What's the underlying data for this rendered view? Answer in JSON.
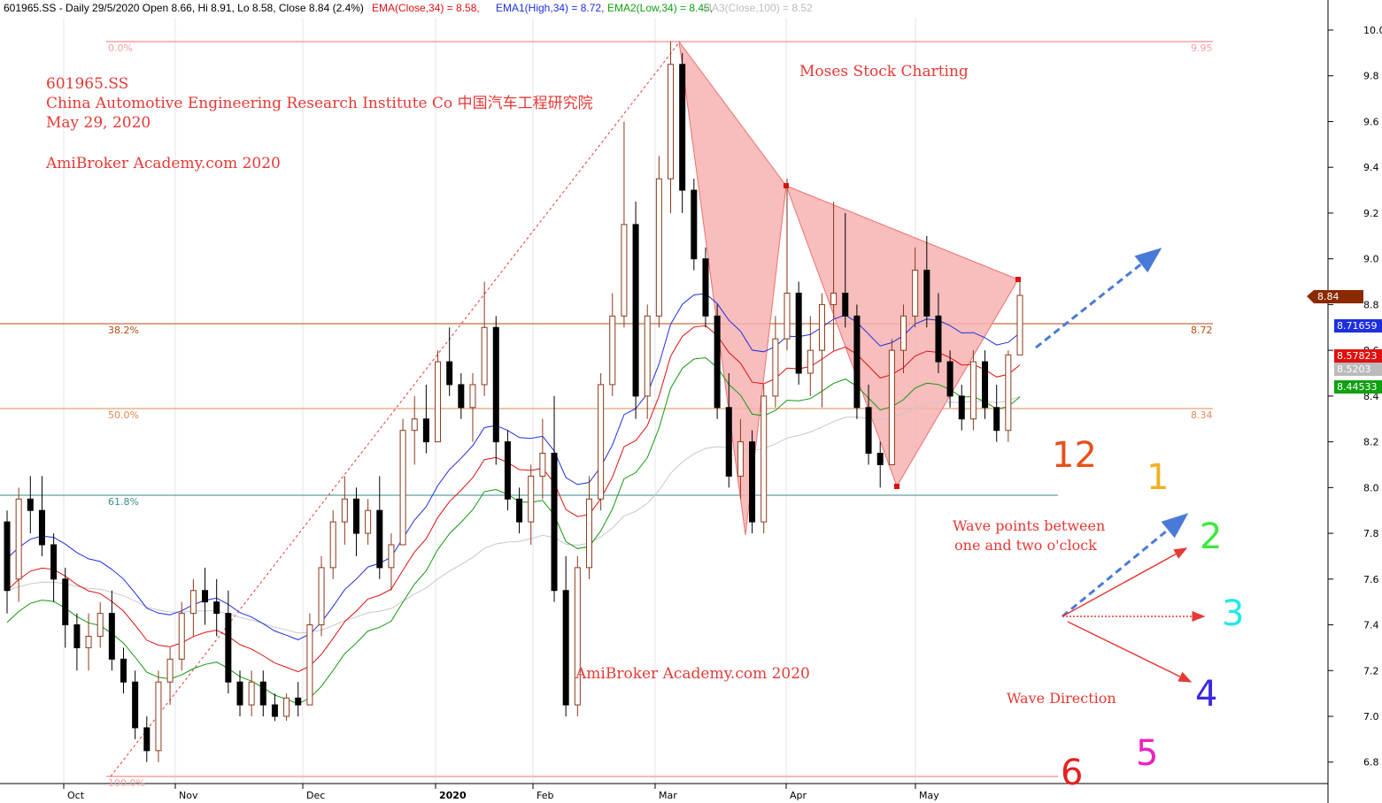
{
  "header": {
    "symbol_line": "601965.SS - Daily 29/5/2020 Open 8.66, Hi 8.91, Lo 8.58, Close 8.84 (2.4%)",
    "ema": "EMA(Close,34) = 8.58,",
    "ema1": "EMA1(High,34) = 8.72,",
    "ema2": "EMA2(Low,34) = 8.45,",
    "ma3": "MA3(Close,100) = 8.52"
  },
  "annotations": {
    "code": "601965.SS",
    "company": "China Automotive Engineering Research Institute Co 中国汽车工程研究院",
    "date": "May 29, 2020",
    "site1": "AmiBroker Academy.com  2020",
    "moses": "Moses Stock Charting",
    "site2": "AmiBroker Academy.com  2020",
    "wave_points_1": "Wave points between",
    "wave_points_2": "one and two o'clock",
    "wave_direction": "Wave Direction"
  },
  "clock": [
    {
      "text": "12",
      "color": "#e8501a"
    },
    {
      "text": "1",
      "color": "#f0b020"
    },
    {
      "text": "2",
      "color": "#3ee83e"
    },
    {
      "text": "3",
      "color": "#22e8e8"
    },
    {
      "text": "4",
      "color": "#3a2ae0"
    },
    {
      "text": "5",
      "color": "#f020c0"
    },
    {
      "text": "6",
      "color": "#e82020"
    }
  ],
  "price_tags": [
    {
      "text": "8.84",
      "color": "#8b2a00"
    },
    {
      "text": "8.71659",
      "color": "#1e2ee0"
    },
    {
      "text": "8.57823",
      "color": "#e01010"
    },
    {
      "text": "8.5203",
      "color": "#bbbbbb"
    },
    {
      "text": "8.44533",
      "color": "#10a010"
    }
  ],
  "chart_data": {
    "type": "candlestick",
    "y_ticks": [
      "6.8",
      "7.0",
      "7.2",
      "7.4",
      "7.6",
      "7.8",
      "8.0",
      "8.2",
      "8.4",
      "8.6",
      "8.8",
      "9.0",
      "9.2",
      "9.4",
      "9.6",
      "9.8",
      "10.0"
    ],
    "ylim": [
      6.65,
      10.05
    ],
    "x_ticks": [
      "Oct",
      "Nov",
      "Dec",
      "2020",
      "Feb",
      "Mar",
      "Apr",
      "May"
    ],
    "fib_levels": [
      {
        "pct": "0.0%",
        "value": "9.95"
      },
      {
        "pct": "38.2%",
        "value": "8.72"
      },
      {
        "pct": "50.0%",
        "value": "8.34"
      },
      {
        "pct": "61.8%",
        "value": ""
      },
      {
        "pct": "100.0%",
        "value": ""
      }
    ],
    "ohlc": [
      [
        7.85,
        7.9,
        7.45,
        7.55
      ],
      [
        7.6,
        8.0,
        7.5,
        7.95
      ],
      [
        7.95,
        8.05,
        7.8,
        7.9
      ],
      [
        7.9,
        8.05,
        7.7,
        7.75
      ],
      [
        7.75,
        7.8,
        7.5,
        7.6
      ],
      [
        7.6,
        7.65,
        7.3,
        7.4
      ],
      [
        7.4,
        7.45,
        7.2,
        7.3
      ],
      [
        7.3,
        7.45,
        7.2,
        7.35
      ],
      [
        7.35,
        7.5,
        7.3,
        7.45
      ],
      [
        7.45,
        7.55,
        7.2,
        7.25
      ],
      [
        7.25,
        7.3,
        7.1,
        7.15
      ],
      [
        7.15,
        7.2,
        6.9,
        6.95
      ],
      [
        6.95,
        7.0,
        6.8,
        6.85
      ],
      [
        6.85,
        7.2,
        6.8,
        7.15
      ],
      [
        7.15,
        7.3,
        7.05,
        7.25
      ],
      [
        7.25,
        7.5,
        7.2,
        7.45
      ],
      [
        7.45,
        7.6,
        7.35,
        7.55
      ],
      [
        7.55,
        7.65,
        7.4,
        7.5
      ],
      [
        7.5,
        7.6,
        7.35,
        7.45
      ],
      [
        7.45,
        7.55,
        7.1,
        7.15
      ],
      [
        7.15,
        7.2,
        7.0,
        7.05
      ],
      [
        7.05,
        7.2,
        7.0,
        7.15
      ],
      [
        7.15,
        7.2,
        7.0,
        7.05
      ],
      [
        7.05,
        7.1,
        6.98,
        7.0
      ],
      [
        7.0,
        7.1,
        6.98,
        7.08
      ],
      [
        7.08,
        7.15,
        7.0,
        7.05
      ],
      [
        7.05,
        7.45,
        7.05,
        7.4
      ],
      [
        7.4,
        7.7,
        7.35,
        7.65
      ],
      [
        7.65,
        7.9,
        7.6,
        7.85
      ],
      [
        7.85,
        8.05,
        7.75,
        7.95
      ],
      [
        7.95,
        8.0,
        7.7,
        7.8
      ],
      [
        7.8,
        7.95,
        7.75,
        7.9
      ],
      [
        7.9,
        8.05,
        7.6,
        7.65
      ],
      [
        7.65,
        7.8,
        7.55,
        7.75
      ],
      [
        7.75,
        8.3,
        7.75,
        8.25
      ],
      [
        8.25,
        8.4,
        8.1,
        8.3
      ],
      [
        8.3,
        8.45,
        8.15,
        8.2
      ],
      [
        8.2,
        8.6,
        8.2,
        8.55
      ],
      [
        8.55,
        8.7,
        8.4,
        8.45
      ],
      [
        8.45,
        8.5,
        8.3,
        8.35
      ],
      [
        8.35,
        8.5,
        8.2,
        8.45
      ],
      [
        8.45,
        8.9,
        8.4,
        8.7
      ],
      [
        8.7,
        8.75,
        8.1,
        8.2
      ],
      [
        8.2,
        8.25,
        7.9,
        7.95
      ],
      [
        7.95,
        8.0,
        7.8,
        7.85
      ],
      [
        7.85,
        8.1,
        7.75,
        8.05
      ],
      [
        8.05,
        8.3,
        7.95,
        8.15
      ],
      [
        8.15,
        8.4,
        7.5,
        7.55
      ],
      [
        7.55,
        7.7,
        7.0,
        7.05
      ],
      [
        7.05,
        7.7,
        7.0,
        7.65
      ],
      [
        7.65,
        8.05,
        7.6,
        7.95
      ],
      [
        7.95,
        8.5,
        7.9,
        8.45
      ],
      [
        8.45,
        8.85,
        8.4,
        8.75
      ],
      [
        8.75,
        9.6,
        8.7,
        9.15
      ],
      [
        9.15,
        9.25,
        8.3,
        8.4
      ],
      [
        8.4,
        8.8,
        8.3,
        8.75
      ],
      [
        8.75,
        9.45,
        8.7,
        9.35
      ],
      [
        9.35,
        9.95,
        9.2,
        9.85
      ],
      [
        9.85,
        9.9,
        9.2,
        9.3
      ],
      [
        9.3,
        9.35,
        8.95,
        9.0
      ],
      [
        9.0,
        9.05,
        8.7,
        8.75
      ],
      [
        8.75,
        8.8,
        8.3,
        8.35
      ],
      [
        8.35,
        8.5,
        8.0,
        8.05
      ],
      [
        8.05,
        8.3,
        7.95,
        8.2
      ],
      [
        8.2,
        8.25,
        7.8,
        7.85
      ],
      [
        7.85,
        8.45,
        7.8,
        8.4
      ],
      [
        8.4,
        8.75,
        8.35,
        8.65
      ],
      [
        8.65,
        9.35,
        8.6,
        8.85
      ],
      [
        8.85,
        8.9,
        8.45,
        8.5
      ],
      [
        8.5,
        8.75,
        8.4,
        8.6
      ],
      [
        8.6,
        8.85,
        8.35,
        8.8
      ],
      [
        8.8,
        9.25,
        8.6,
        8.85
      ],
      [
        8.85,
        9.2,
        8.7,
        8.75
      ],
      [
        8.75,
        8.8,
        8.3,
        8.35
      ],
      [
        8.35,
        8.45,
        8.1,
        8.15
      ],
      [
        8.15,
        8.2,
        8.0,
        8.1
      ],
      [
        8.1,
        8.65,
        8.1,
        8.6
      ],
      [
        8.6,
        8.8,
        8.5,
        8.75
      ],
      [
        8.75,
        9.05,
        8.7,
        8.95
      ],
      [
        8.95,
        9.1,
        8.7,
        8.75
      ],
      [
        8.75,
        8.85,
        8.5,
        8.55
      ],
      [
        8.55,
        8.6,
        8.35,
        8.4
      ],
      [
        8.4,
        8.45,
        8.25,
        8.3
      ],
      [
        8.3,
        8.6,
        8.25,
        8.55
      ],
      [
        8.55,
        8.6,
        8.3,
        8.35
      ],
      [
        8.35,
        8.45,
        8.2,
        8.25
      ],
      [
        8.25,
        8.6,
        8.2,
        8.58
      ],
      [
        8.58,
        8.91,
        8.58,
        8.84
      ]
    ]
  }
}
